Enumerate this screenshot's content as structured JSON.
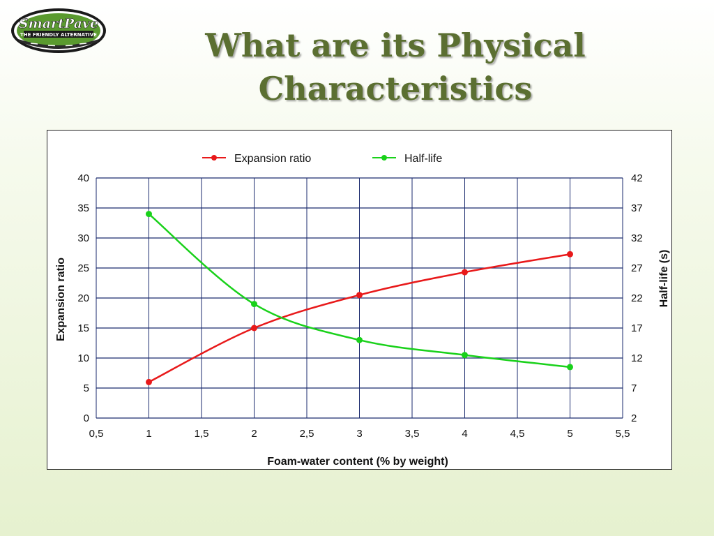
{
  "logo": {
    "brand": "SmartPave",
    "tagline": "THE FRIENDLY ALTERNATIVE"
  },
  "slide": {
    "title_line1": "What are its Physical",
    "title_line2": "Characteristics"
  },
  "colors": {
    "title": "#5b6f31",
    "expansion": "#e8191a",
    "halflife": "#19d11a",
    "grid": "#1a2a6e"
  },
  "chart_data": {
    "type": "line",
    "xlabel": "Foam-water content (% by weight)",
    "ylabel": "Expansion ratio",
    "y2label": "Half-life (s)",
    "xlim": [
      0.5,
      5.5
    ],
    "ylim": [
      0,
      40
    ],
    "y2lim": [
      2,
      42
    ],
    "x_ticks": [
      "0,5",
      "1",
      "1,5",
      "2",
      "2,5",
      "3",
      "3,5",
      "4",
      "4,5",
      "5",
      "5,5"
    ],
    "y_ticks": [
      "0",
      "5",
      "10",
      "15",
      "20",
      "25",
      "30",
      "35",
      "40"
    ],
    "y2_ticks": [
      "2",
      "7",
      "12",
      "17",
      "22",
      "27",
      "32",
      "37",
      "42"
    ],
    "grid": true,
    "legend_position": "top-center",
    "series": [
      {
        "name": "Expansion ratio",
        "axis": "left",
        "x": [
          1,
          2,
          3,
          4,
          5
        ],
        "y": [
          6,
          15,
          20.5,
          24.3,
          27.3
        ]
      },
      {
        "name": "Half-life",
        "axis": "right",
        "x": [
          1,
          2,
          3,
          4,
          5
        ],
        "y": [
          36,
          21,
          15,
          12.5,
          10.5
        ]
      }
    ]
  }
}
